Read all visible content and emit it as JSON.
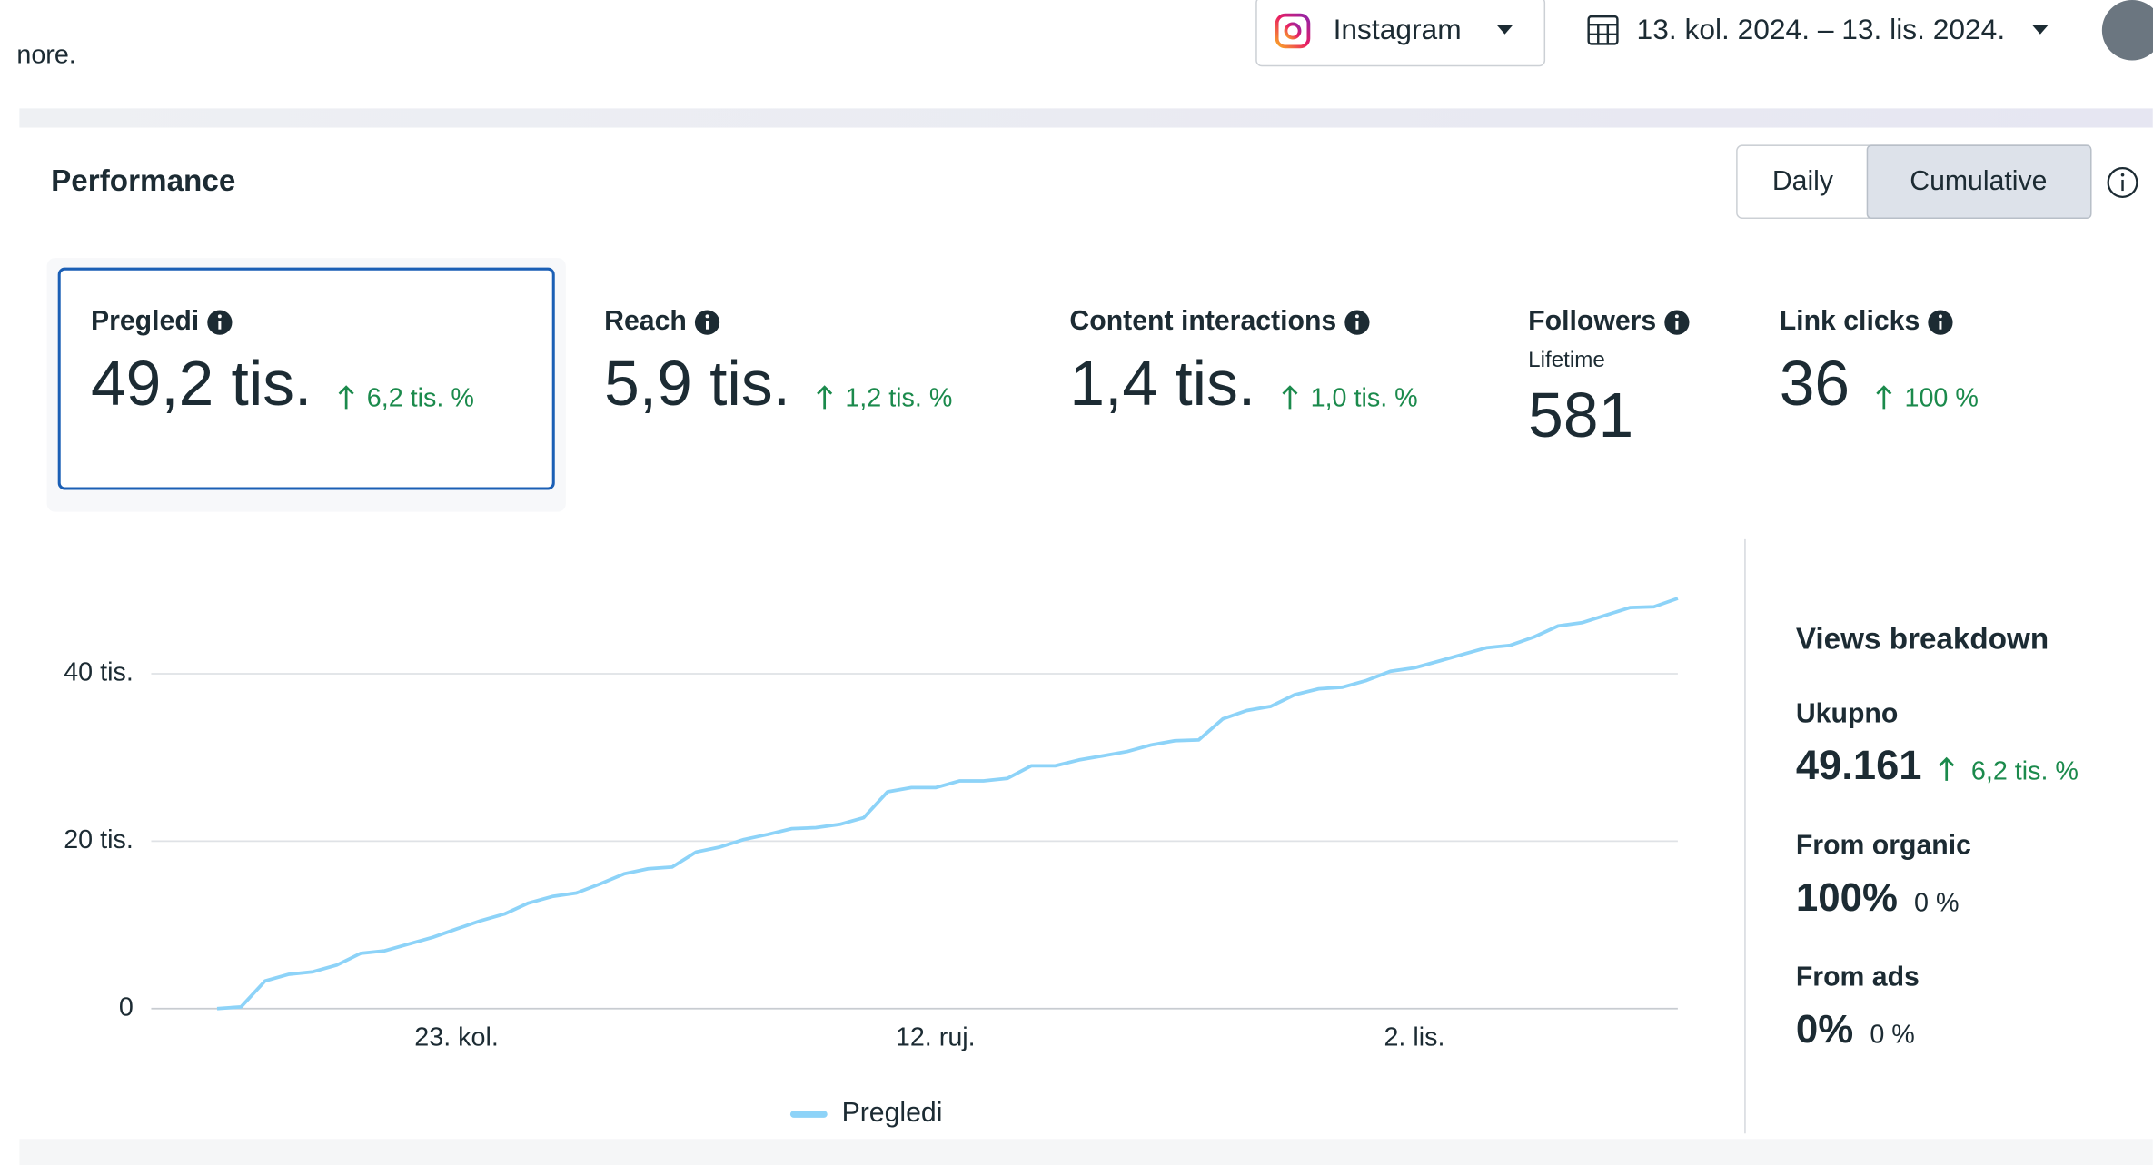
{
  "header": {
    "partial_text": "nore.",
    "platform": "Instagram",
    "date_range": "13. kol. 2024. – 13. lis. 2024."
  },
  "performance": {
    "title": "Performance",
    "toggle": [
      "Daily",
      "Cumulative"
    ]
  },
  "metrics": [
    {
      "label": "Pregledi",
      "value": "49,2 tis.",
      "change": "6,2 tis. %"
    },
    {
      "label": "Reach",
      "value": "5,9 tis.",
      "change": "1,2 tis. %"
    },
    {
      "label": "Content interactions",
      "value": "1,4 tis.",
      "change": "1,0 tis. %"
    },
    {
      "label": "Followers",
      "sublabel": "Lifetime",
      "value": "581"
    },
    {
      "label": "Link clicks",
      "value": "36",
      "change": "100 %"
    }
  ],
  "chart_data": {
    "type": "line",
    "categories": [
      null,
      null,
      null,
      null,
      null,
      null,
      null,
      null,
      null,
      null,
      "23. kol.",
      null,
      null,
      null,
      null,
      null,
      null,
      null,
      null,
      null,
      null,
      null,
      null,
      null,
      null,
      null,
      null,
      null,
      null,
      null,
      "12. ruj.",
      null,
      null,
      null,
      null,
      null,
      null,
      null,
      null,
      null,
      null,
      null,
      null,
      null,
      null,
      null,
      null,
      null,
      null,
      null,
      "2. lis.",
      null,
      null,
      null,
      null,
      null,
      null,
      null,
      null,
      null,
      null,
      null
    ],
    "series": [
      {
        "name": "Pregledi",
        "color": "#8dd3f8",
        "values": [
          0,
          200,
          3300,
          4100,
          4400,
          5200,
          6600,
          6900,
          7700,
          8500,
          9500,
          10500,
          11300,
          12600,
          13400,
          13800,
          14900,
          16100,
          16700,
          16900,
          18700,
          19300,
          20200,
          20800,
          21500,
          21600,
          22000,
          22800,
          25900,
          26400,
          26400,
          27200,
          27200,
          27500,
          29000,
          29000,
          29700,
          30200,
          30700,
          31500,
          32000,
          32100,
          34600,
          35600,
          36100,
          37500,
          38200,
          38400,
          39200,
          40300,
          40700,
          41500,
          42300,
          43100,
          43400,
          44400,
          45700,
          46100,
          47000,
          47900,
          48000,
          49000
        ]
      }
    ],
    "ylim": [
      0,
      50000
    ],
    "yticks": [
      0,
      {
        "value": 20000,
        "label": "20 tis."
      },
      {
        "value": 40000,
        "label": "40 tis."
      }
    ],
    "grid": true,
    "legend": "bottom"
  },
  "breakdown": {
    "title": "Views breakdown",
    "items": [
      {
        "label": "Ukupno",
        "value": "49.161",
        "change": "6,2 tis. %"
      },
      {
        "label": "From organic",
        "value": "100%",
        "change": "0 %"
      },
      {
        "label": "From ads",
        "value": "0%",
        "change": "0 %"
      }
    ]
  }
}
